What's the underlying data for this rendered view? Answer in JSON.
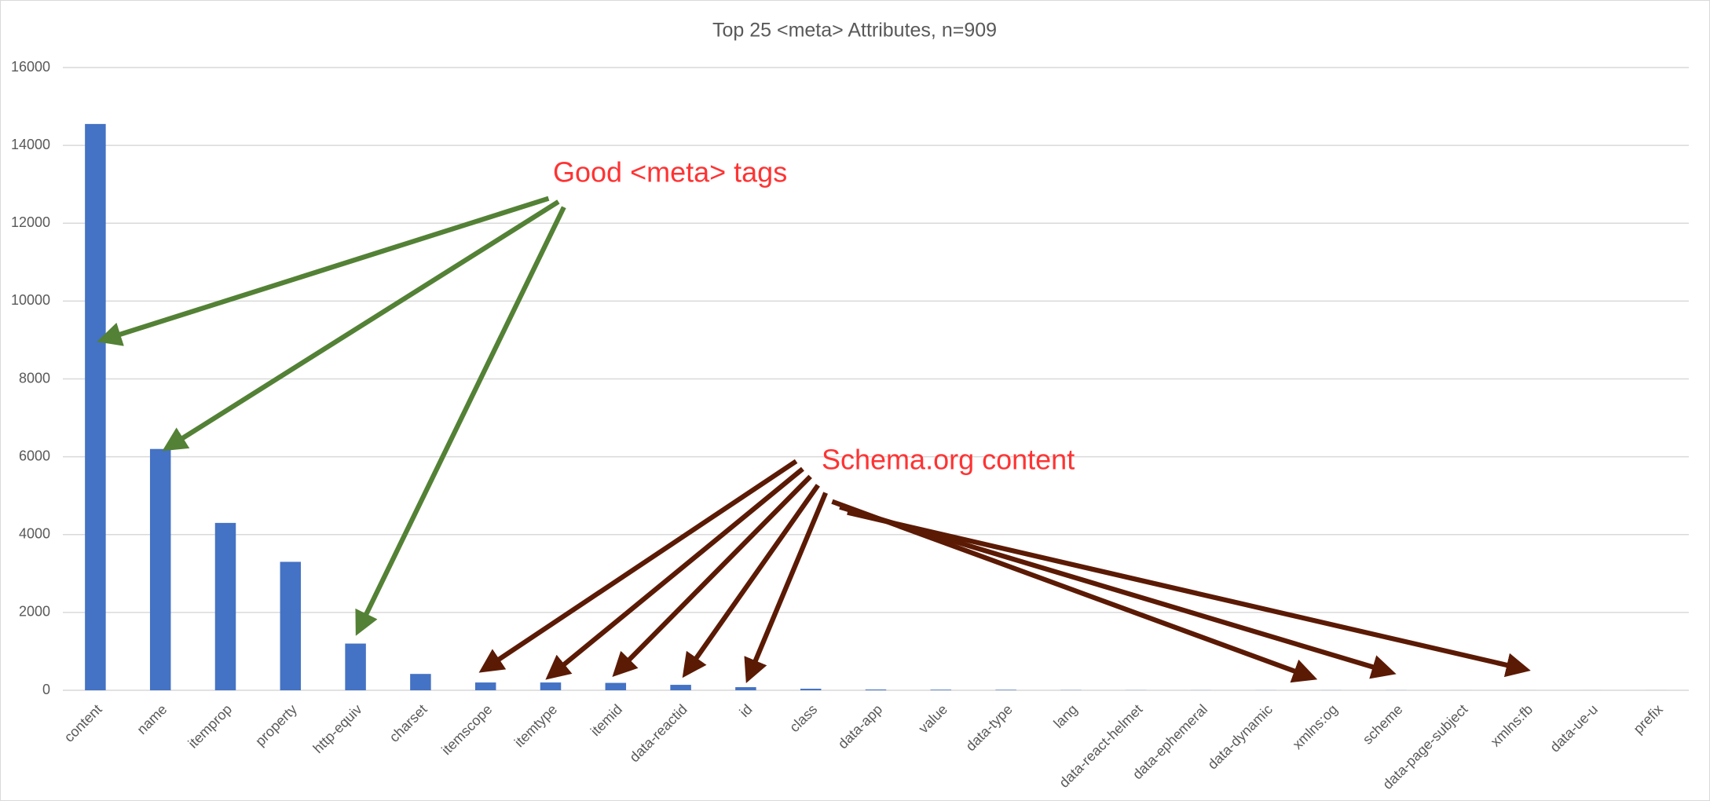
{
  "chart_data": {
    "type": "bar",
    "title": "Top 25 <meta> Attributes, n=909",
    "categories": [
      "content",
      "name",
      "itemprop",
      "property",
      "http-equiv",
      "charset",
      "itemscope",
      "itemtype",
      "itemid",
      "data-reactid",
      "id",
      "class",
      "data-app",
      "value",
      "data-type",
      "lang",
      "data-react-helmet",
      "data-ephemeral",
      "data-dynamic",
      "xmlns:og",
      "scheme",
      "data-page-subject",
      "xmlns:fb",
      "data-ue-u",
      "prefix"
    ],
    "values": [
      14550,
      6200,
      4300,
      3300,
      1200,
      420,
      200,
      200,
      190,
      140,
      80,
      40,
      20,
      15,
      12,
      5,
      3,
      2,
      2,
      2,
      2,
      1,
      1,
      1,
      1
    ],
    "color": "#4472c4",
    "ylim": [
      0,
      16000
    ],
    "yticks": [
      0,
      2000,
      4000,
      6000,
      8000,
      10000,
      12000,
      14000,
      16000
    ],
    "grid": true,
    "annotations": [
      "Good <meta> tags",
      "Schema.org content"
    ]
  }
}
